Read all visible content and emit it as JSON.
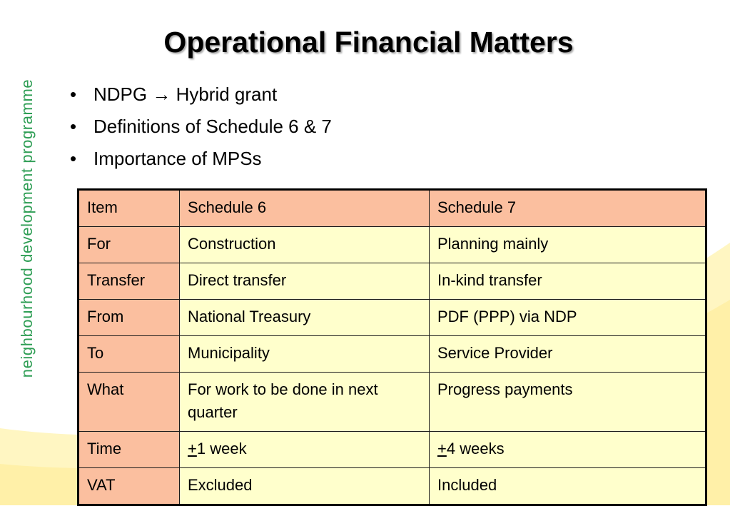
{
  "sidebar": {
    "text": "neighbourhood development programme"
  },
  "title": "Operational Financial Matters",
  "bullets": [
    "NDPG → Hybrid grant",
    "Definitions of Schedule 6 & 7",
    "Importance of MPSs"
  ],
  "bullet_glyph": "•",
  "table": {
    "header": [
      "Item",
      "Schedule 6",
      "Schedule 7"
    ],
    "rows": [
      {
        "label": "For",
        "s6": "Construction",
        "s7": "Planning mainly"
      },
      {
        "label": "Transfer",
        "s6": "Direct transfer",
        "s7": "In-kind transfer"
      },
      {
        "label": "From",
        "s6": "National Treasury",
        "s7": "PDF (PPP) via NDP"
      },
      {
        "label": "To",
        "s6": "Municipality",
        "s7": "Service Provider"
      },
      {
        "label": "What",
        "s6": "For work to be done in next quarter",
        "s7": "Progress payments"
      },
      {
        "label": "Time",
        "s6_symbol": "+",
        "s6": "1 week",
        "s7_symbol": "+",
        "s7": "4 weeks"
      },
      {
        "label": "VAT",
        "s6": "Excluded",
        "s7": "Included"
      }
    ]
  },
  "colors": {
    "header_fill": "#fbbf9f",
    "cell_fill": "#ffffcc",
    "side_text": "#2f9e55",
    "swoosh": "#fff4b0"
  }
}
